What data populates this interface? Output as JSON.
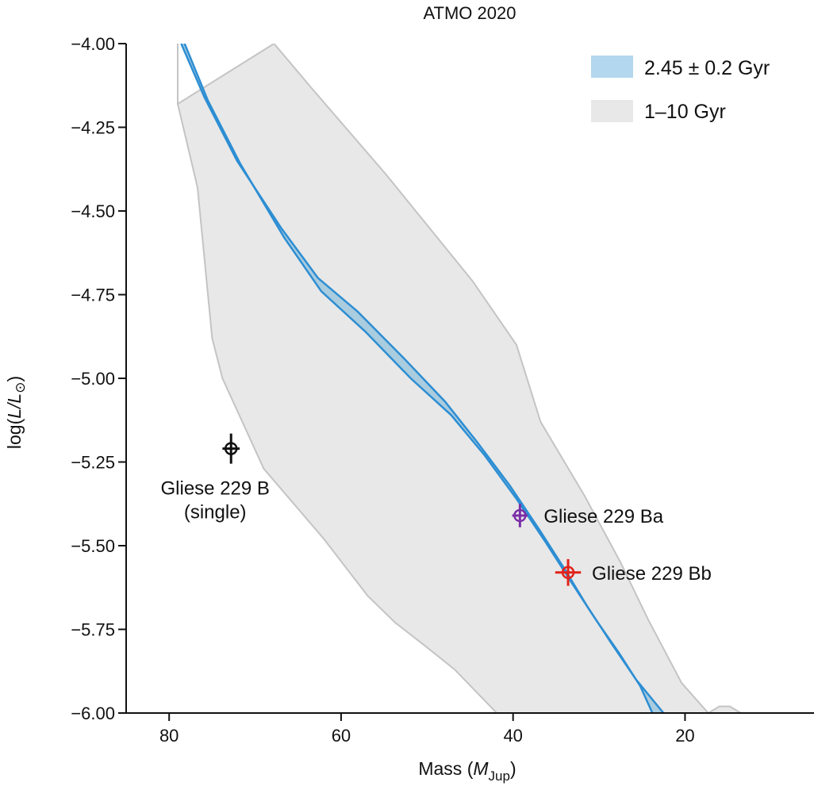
{
  "chart_data": {
    "type": "area",
    "title": "ATMO 2020",
    "xlabel": {
      "prefix": "Mass (",
      "symbol": "M",
      "subscript": "Jup",
      "suffix": ")"
    },
    "ylabel": {
      "prefix": "log(",
      "symbol": "L/L",
      "subscript": "⊙",
      "suffix": ")"
    },
    "xlim": [
      85,
      5
    ],
    "ylim": [
      -6.0,
      -4.0
    ],
    "x_reversed": true,
    "x_ticks": [
      80,
      60,
      40,
      20
    ],
    "x_tick_labels": [
      "80",
      "60",
      "40",
      "20"
    ],
    "y_ticks": [
      -4.0,
      -4.25,
      -4.5,
      -4.75,
      -5.0,
      -5.25,
      -5.5,
      -5.75,
      -6.0
    ],
    "y_tick_labels": [
      "−4.00",
      "−4.25",
      "−4.50",
      "−4.75",
      "−5.00",
      "−5.25",
      "−5.50",
      "−5.75",
      "−6.00"
    ],
    "grid": false,
    "legend_position": "top-right",
    "series": [
      {
        "name": "1–10 Gyr",
        "kind": "band",
        "color": "#e8e8e8",
        "edge_color": "#c4c4c4",
        "upper": [
          [
            79,
            -4.0
          ],
          [
            79,
            -4.18
          ],
          [
            67.8,
            -4.0
          ],
          [
            63.2,
            -4.14
          ],
          [
            54.8,
            -4.39
          ],
          [
            44.7,
            -4.71
          ],
          [
            39.6,
            -4.9
          ],
          [
            36.8,
            -5.13
          ],
          [
            31.7,
            -5.35
          ],
          [
            27.5,
            -5.55
          ],
          [
            24.3,
            -5.72
          ],
          [
            20.4,
            -5.91
          ],
          [
            17.3,
            -6.0
          ],
          [
            16.0,
            -5.98
          ],
          [
            14.8,
            -5.98
          ],
          [
            13.5,
            -6.0
          ]
        ],
        "lower": [
          [
            79,
            -4.18
          ],
          [
            76.7,
            -4.43
          ],
          [
            75.0,
            -4.88
          ],
          [
            73.8,
            -5.0
          ],
          [
            69.0,
            -5.27
          ],
          [
            62.0,
            -5.48
          ],
          [
            56.9,
            -5.65
          ],
          [
            53.7,
            -5.73
          ],
          [
            50.2,
            -5.8
          ],
          [
            46.8,
            -5.87
          ],
          [
            41.9,
            -6.0
          ]
        ]
      },
      {
        "name": "2.45 ± 0.2 Gyr",
        "kind": "band",
        "color": "#aaccdf",
        "edge_color": "#2d8ed3",
        "upper": [
          [
            78.6,
            -4.0
          ],
          [
            75.9,
            -4.16
          ],
          [
            72.1,
            -4.35
          ],
          [
            67.0,
            -4.55
          ],
          [
            62.7,
            -4.7
          ],
          [
            58.1,
            -4.8
          ],
          [
            52.7,
            -4.94
          ],
          [
            47.9,
            -5.07
          ],
          [
            44.2,
            -5.19
          ],
          [
            40.4,
            -5.32
          ],
          [
            37.0,
            -5.45
          ],
          [
            34.0,
            -5.57
          ],
          [
            31.4,
            -5.68
          ],
          [
            28.6,
            -5.79
          ],
          [
            25.7,
            -5.9
          ],
          [
            22.5,
            -6.0
          ]
        ],
        "lower": [
          [
            78.2,
            -4.0
          ],
          [
            75.5,
            -4.17
          ],
          [
            71.7,
            -4.36
          ],
          [
            66.6,
            -4.58
          ],
          [
            62.3,
            -4.74
          ],
          [
            57.2,
            -4.86
          ],
          [
            51.9,
            -5.0
          ],
          [
            47.2,
            -5.11
          ],
          [
            43.3,
            -5.23
          ],
          [
            39.6,
            -5.36
          ],
          [
            36.2,
            -5.49
          ],
          [
            33.2,
            -5.61
          ],
          [
            30.4,
            -5.72
          ],
          [
            27.7,
            -5.82
          ],
          [
            25.2,
            -5.92
          ],
          [
            23.8,
            -6.0
          ]
        ]
      }
    ],
    "points": [
      {
        "label_lines": [
          "Gliese 229 B",
          "(single)"
        ],
        "x": 72.8,
        "y": -5.21,
        "xerr": 1.0,
        "yerr": 0.045,
        "color": "#111111",
        "label_pos": "below"
      },
      {
        "label_lines": [
          "Gliese 229 Ba"
        ],
        "x": 39.2,
        "y": -5.41,
        "xerr": 0.9,
        "yerr": 0.035,
        "color": "#7b2fa8",
        "label_pos": "right"
      },
      {
        "label_lines": [
          "Gliese 229 Bb"
        ],
        "x": 33.6,
        "y": -5.58,
        "xerr": 1.5,
        "yerr": 0.04,
        "color": "#e2231a",
        "label_pos": "right"
      }
    ]
  }
}
